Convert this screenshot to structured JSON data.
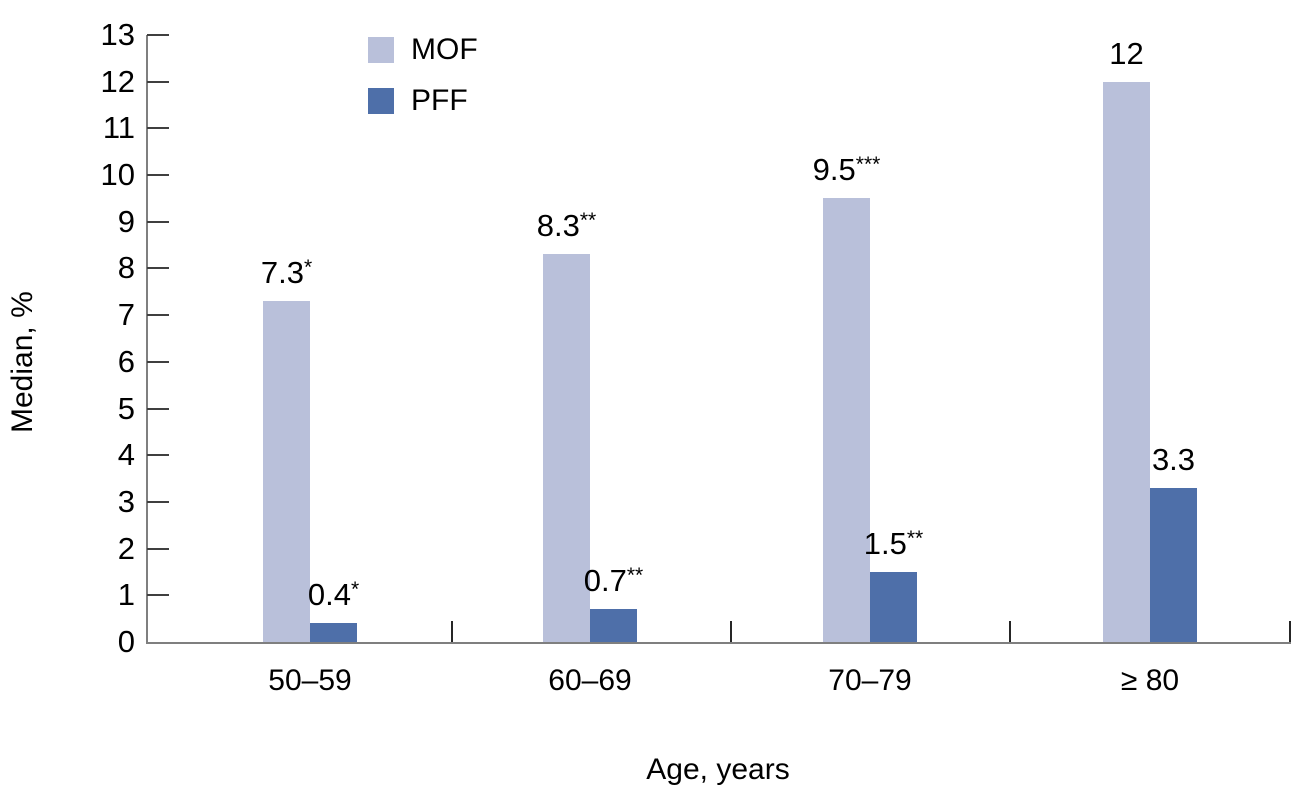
{
  "chart_data": {
    "type": "bar",
    "title": "",
    "xlabel": "Age, years",
    "ylabel": "Median, %",
    "categories": [
      "50–59",
      "60–69",
      "70–79",
      "≥ 80"
    ],
    "series": [
      {
        "name": "MOF",
        "color": "#b9c0da",
        "values": [
          7.3,
          8.3,
          9.5,
          12
        ],
        "value_labels": [
          {
            "text": "7.3",
            "sup": "*"
          },
          {
            "text": "8.3",
            "sup": "**"
          },
          {
            "text": "9.5",
            "sup": "***"
          },
          {
            "text": "12",
            "sup": ""
          }
        ]
      },
      {
        "name": "PFF",
        "color": "#4e6fa9",
        "values": [
          0.4,
          0.7,
          1.5,
          3.3
        ],
        "value_labels": [
          {
            "text": "0.4",
            "sup": "*"
          },
          {
            "text": "0.7",
            "sup": "**"
          },
          {
            "text": "1.5",
            "sup": "**"
          },
          {
            "text": "3.3",
            "sup": ""
          }
        ]
      }
    ],
    "ylim": [
      0,
      13
    ],
    "ytick_step": 1,
    "ytick_labels": [
      "0",
      "1",
      "2",
      "3",
      "4",
      "5",
      "6",
      "7",
      "8",
      "9",
      "10",
      "11",
      "12",
      "13"
    ],
    "legend": {
      "position": "top-left-inside",
      "entries": [
        "MOF",
        "PFF"
      ]
    },
    "grid": false,
    "colors": {
      "axis_line": "#7f7f7f",
      "tick": "#3f3f3f",
      "text": "#000000",
      "background": "#ffffff"
    }
  }
}
